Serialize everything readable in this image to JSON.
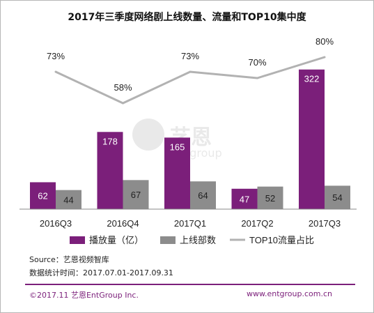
{
  "chart_data": {
    "type": "bar",
    "title": "2017年三季度网络剧上线数量、流量和TOP10集中度",
    "categories": [
      "2016Q3",
      "2016Q4",
      "2017Q1",
      "2017Q2",
      "2017Q3"
    ],
    "series": [
      {
        "name": "播放量（亿）",
        "type": "bar",
        "values": [
          62,
          178,
          165,
          47,
          322
        ],
        "color": "#7b1f7a"
      },
      {
        "name": "上线部数",
        "type": "bar",
        "values": [
          44,
          67,
          64,
          52,
          54
        ],
        "color": "#8c8c8c"
      },
      {
        "name": "TOP10流量占比",
        "type": "line",
        "values": [
          73,
          58,
          73,
          70,
          80
        ],
        "labels": [
          "73%",
          "58%",
          "73%",
          "70%",
          "80%"
        ],
        "color": "#b2b2b2"
      }
    ],
    "legend_position": "bottom",
    "grid": false
  },
  "watermark": {
    "brand": "艺恩",
    "sub": "entgroup"
  },
  "source": {
    "line1": "Source：艺恩视频智库",
    "line2": "数据统计时间：2017.07.01-2017.09.31"
  },
  "footer": {
    "left": "©2017.11 艺恩EntGroup Inc.",
    "right": "www.entgroup.com.cn"
  }
}
